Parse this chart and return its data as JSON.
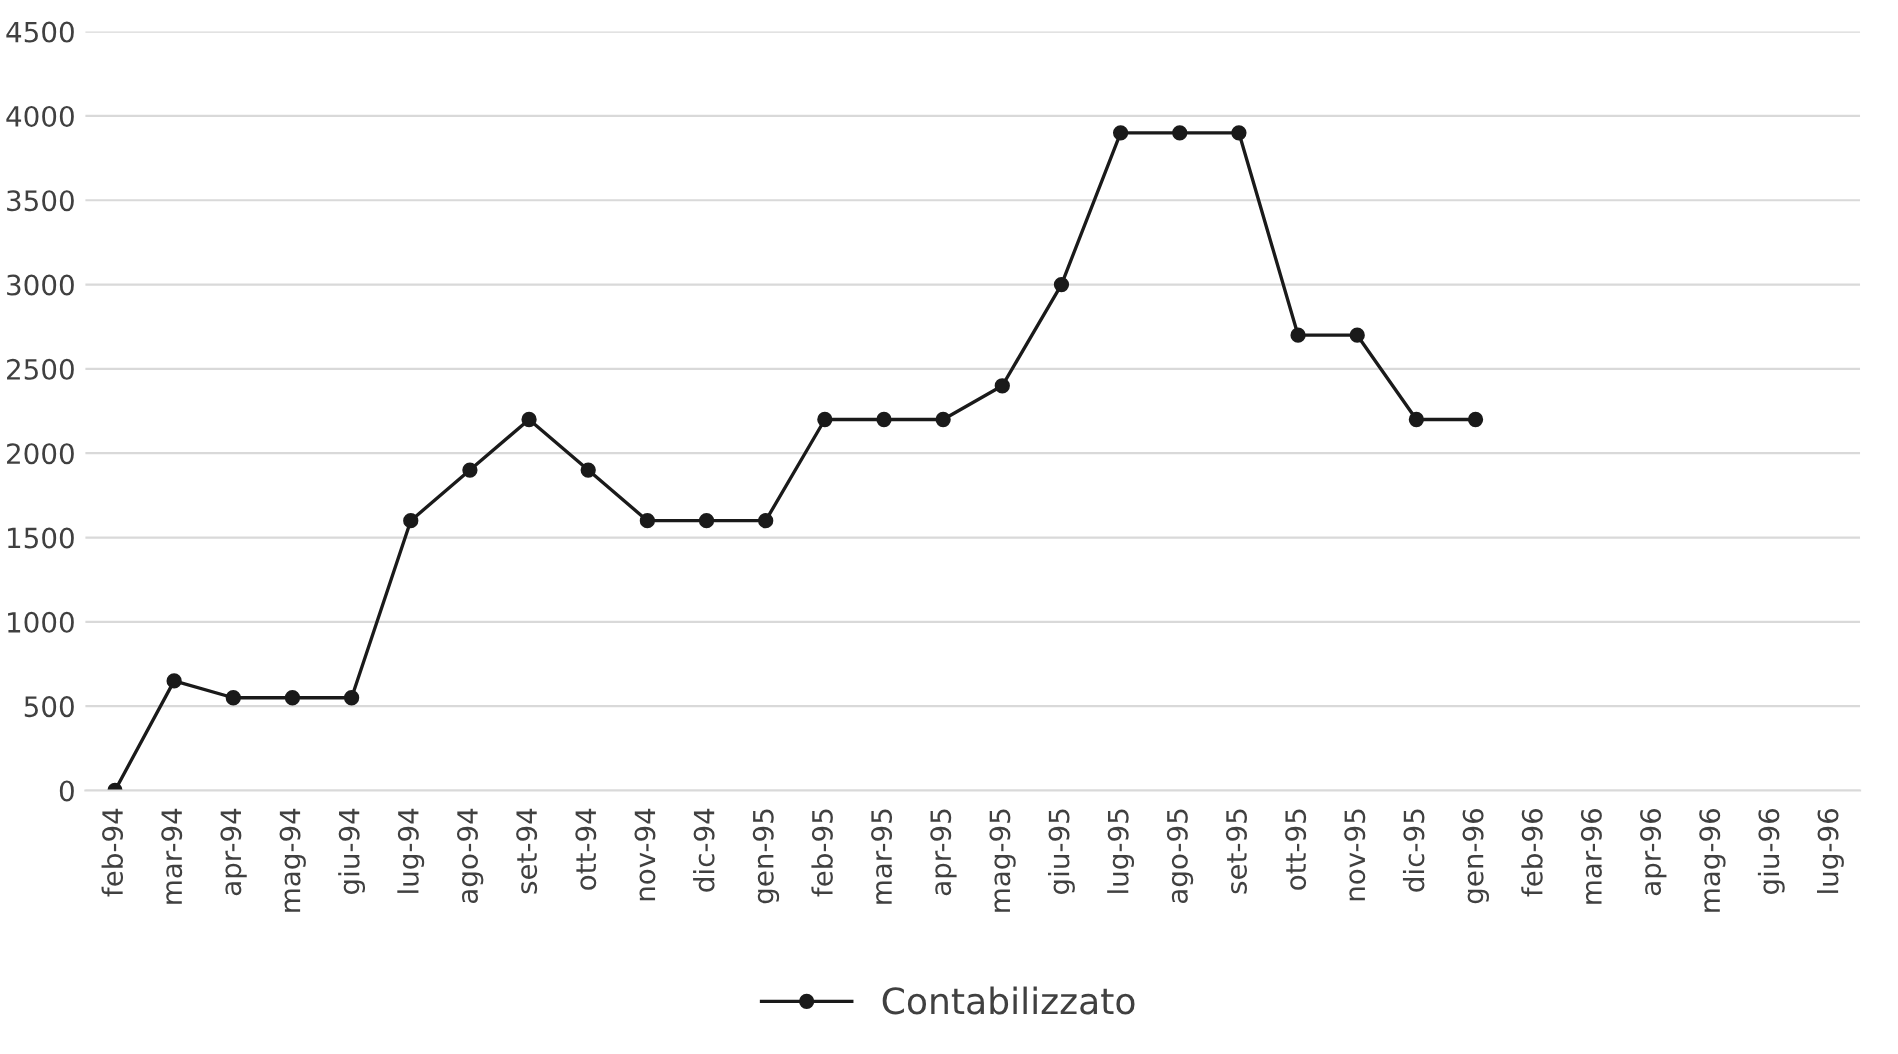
{
  "chart_data": {
    "type": "line",
    "categories": [
      "feb-94",
      "mar-94",
      "apr-94",
      "mag-94",
      "giu-94",
      "lug-94",
      "ago-94",
      "set-94",
      "ott-94",
      "nov-94",
      "dic-94",
      "gen-95",
      "feb-95",
      "mar-95",
      "apr-95",
      "mag-95",
      "giu-95",
      "lug-95",
      "ago-95",
      "set-95",
      "ott-95",
      "nov-95",
      "dic-95",
      "gen-96",
      "feb-96",
      "mar-96",
      "apr-96",
      "mag-96",
      "giu-96",
      "lug-96"
    ],
    "series": [
      {
        "name": "Contabilizzato",
        "color": "#1a1a1a",
        "values": [
          0,
          650,
          550,
          550,
          550,
          1600,
          1900,
          2200,
          1900,
          1600,
          1600,
          1600,
          2200,
          2200,
          2200,
          2400,
          3000,
          3900,
          3900,
          3900,
          2700,
          2700,
          2200,
          2200,
          null,
          null,
          null,
          null,
          null,
          null
        ]
      }
    ],
    "ylim": [
      0,
      4500
    ],
    "yticks": [
      0,
      500,
      1000,
      1500,
      2000,
      2500,
      3000,
      3500,
      4000,
      4500
    ],
    "grid": "y",
    "legend": "bottom",
    "marker": "circle",
    "line_style": "solid"
  }
}
